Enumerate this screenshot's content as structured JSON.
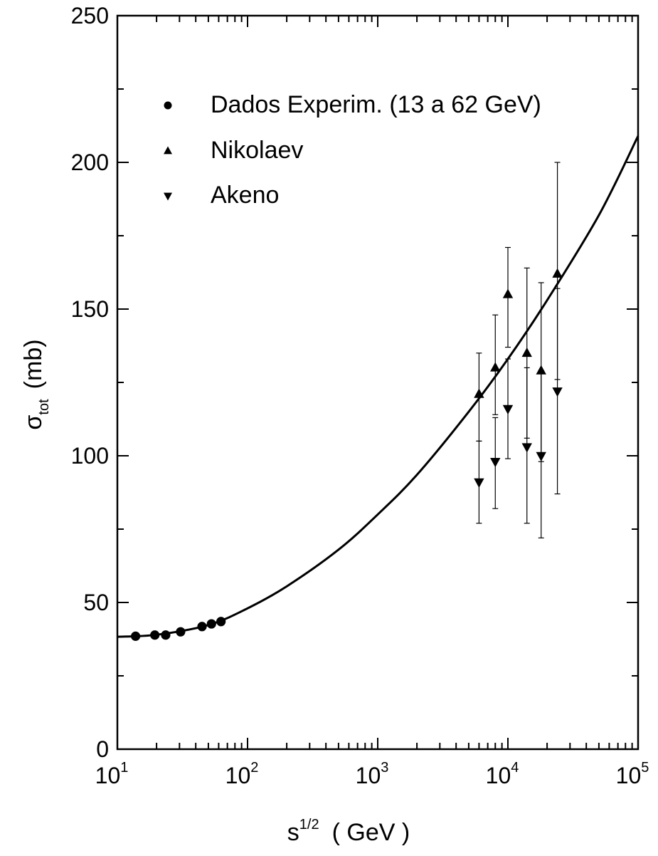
{
  "chart_data": {
    "type": "scatter",
    "x_scale": "log",
    "xlim": [
      10,
      100000
    ],
    "ylim": [
      0,
      250
    ],
    "grid": false,
    "legend_placement": "top-left",
    "xlabel_base": "s",
    "xlabel_sup": "1/2",
    "xlabel_unit": "( GeV )",
    "ylabel_sym": "σ",
    "ylabel_sub": "tot",
    "ylabel_unit": "(mb)",
    "y_ticks": [
      "0",
      "50",
      "100",
      "150",
      "200",
      "250"
    ],
    "x_ticks": [
      {
        "base": "10",
        "exp": "1"
      },
      {
        "base": "10",
        "exp": "2"
      },
      {
        "base": "10",
        "exp": "3"
      },
      {
        "base": "10",
        "exp": "4"
      },
      {
        "base": "10",
        "exp": "5"
      }
    ],
    "series": [
      {
        "name": "Dados Experim. (13 a 62 GeV)",
        "marker": "circle",
        "points": [
          {
            "x": 13.8,
            "y": 38.5
          },
          {
            "x": 19.4,
            "y": 38.9
          },
          {
            "x": 23.5,
            "y": 38.9
          },
          {
            "x": 30.6,
            "y": 40.0
          },
          {
            "x": 44.7,
            "y": 41.8
          },
          {
            "x": 52.8,
            "y": 42.7
          },
          {
            "x": 62.5,
            "y": 43.5
          }
        ]
      },
      {
        "name": "Nikolaev",
        "marker": "triangle-up",
        "points": [
          {
            "x": 6000,
            "y": 121,
            "ylo": 105,
            "yhi": 135
          },
          {
            "x": 8000,
            "y": 130,
            "ylo": 114,
            "yhi": 148
          },
          {
            "x": 10000,
            "y": 155,
            "ylo": 137,
            "yhi": 171
          },
          {
            "x": 14000,
            "y": 135,
            "ylo": 106,
            "yhi": 164
          },
          {
            "x": 18000,
            "y": 129,
            "ylo": 98,
            "yhi": 159
          },
          {
            "x": 24000,
            "y": 162,
            "ylo": 126,
            "yhi": 200
          }
        ]
      },
      {
        "name": "Akeno",
        "marker": "triangle-down",
        "points": [
          {
            "x": 6000,
            "y": 91,
            "ylo": 77,
            "yhi": 105
          },
          {
            "x": 8000,
            "y": 98,
            "ylo": 82,
            "yhi": 113
          },
          {
            "x": 10000,
            "y": 116,
            "ylo": 99,
            "yhi": 133
          },
          {
            "x": 14000,
            "y": 103,
            "ylo": 77,
            "yhi": 130
          },
          {
            "x": 18000,
            "y": 100,
            "ylo": 72,
            "yhi": 129
          },
          {
            "x": 24000,
            "y": 122,
            "ylo": 87,
            "yhi": 157
          }
        ]
      }
    ],
    "fit_curve": [
      {
        "x": 10,
        "y": 38.3
      },
      {
        "x": 20,
        "y": 39.0
      },
      {
        "x": 50,
        "y": 42.3
      },
      {
        "x": 100,
        "y": 48.0
      },
      {
        "x": 200,
        "y": 55.5
      },
      {
        "x": 500,
        "y": 68.0
      },
      {
        "x": 1000,
        "y": 80.0
      },
      {
        "x": 2000,
        "y": 93.5
      },
      {
        "x": 5000,
        "y": 115.0
      },
      {
        "x": 10000,
        "y": 133.0
      },
      {
        "x": 20000,
        "y": 153.0
      },
      {
        "x": 50000,
        "y": 182.0
      },
      {
        "x": 100000,
        "y": 209.0
      }
    ]
  }
}
